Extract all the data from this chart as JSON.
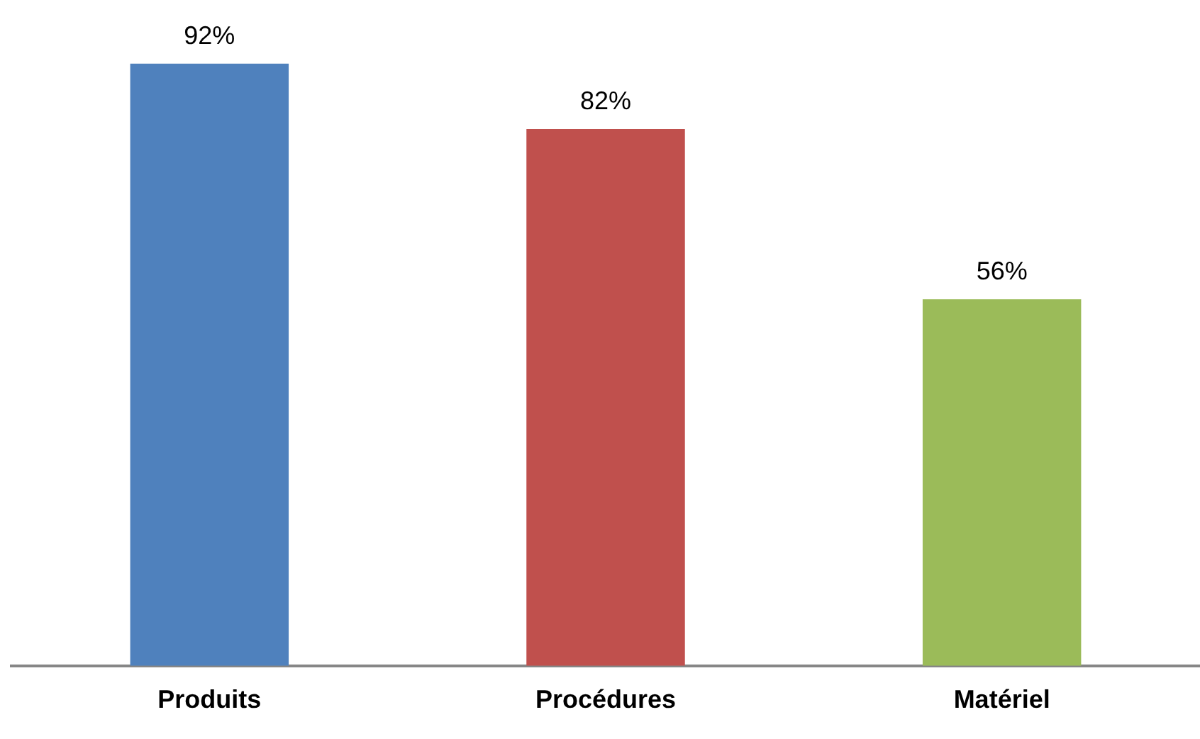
{
  "chart_data": {
    "type": "bar",
    "categories": [
      "Produits",
      "Procédures",
      "Matériel"
    ],
    "values": [
      92,
      82,
      56
    ],
    "colors": [
      "#4f81bd",
      "#c0504d",
      "#9bbb59"
    ],
    "data_labels": true,
    "value_labels": [
      "92%",
      "82%",
      "56%"
    ]
  }
}
